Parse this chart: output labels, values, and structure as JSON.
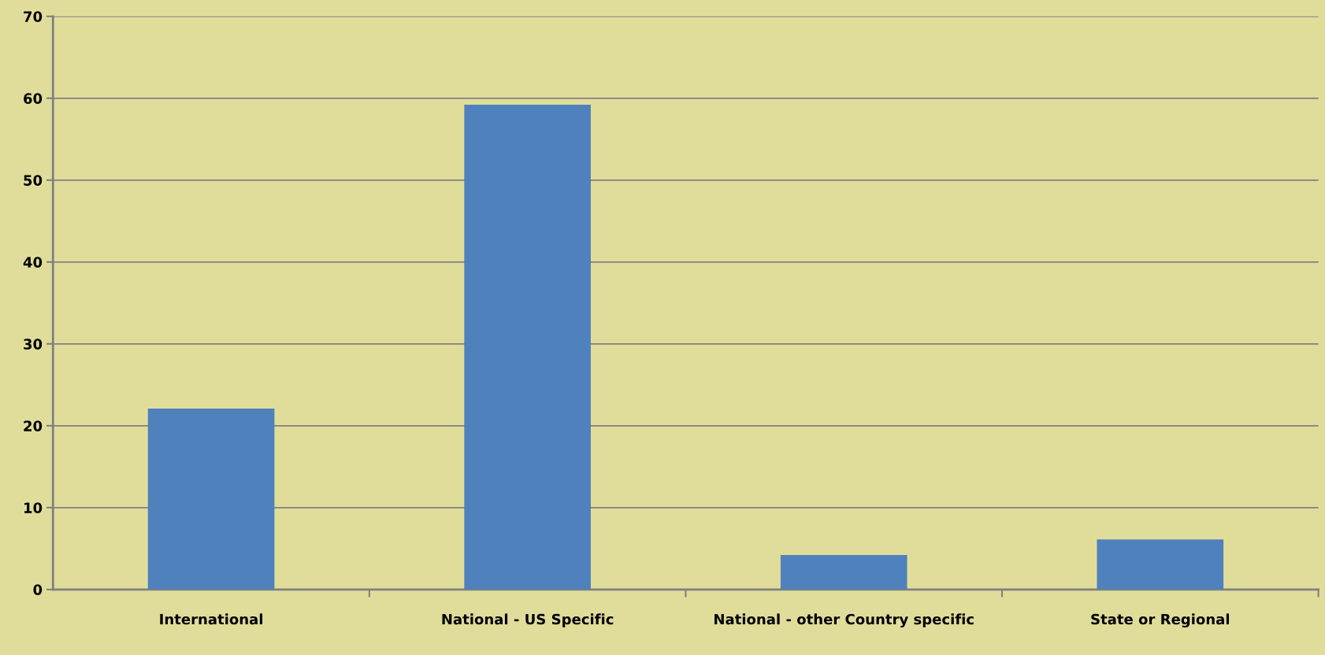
{
  "chart_data": {
    "type": "bar",
    "categories": [
      "International",
      "National - US Specific",
      "National - other Country specific",
      "State or Regional"
    ],
    "values": [
      22.1,
      59.2,
      4.2,
      6.1
    ],
    "color": "#4f81bd",
    "ylim": [
      0,
      70
    ],
    "yticks": [
      0,
      10,
      20,
      30,
      40,
      50,
      60,
      70
    ],
    "grid": "y"
  }
}
